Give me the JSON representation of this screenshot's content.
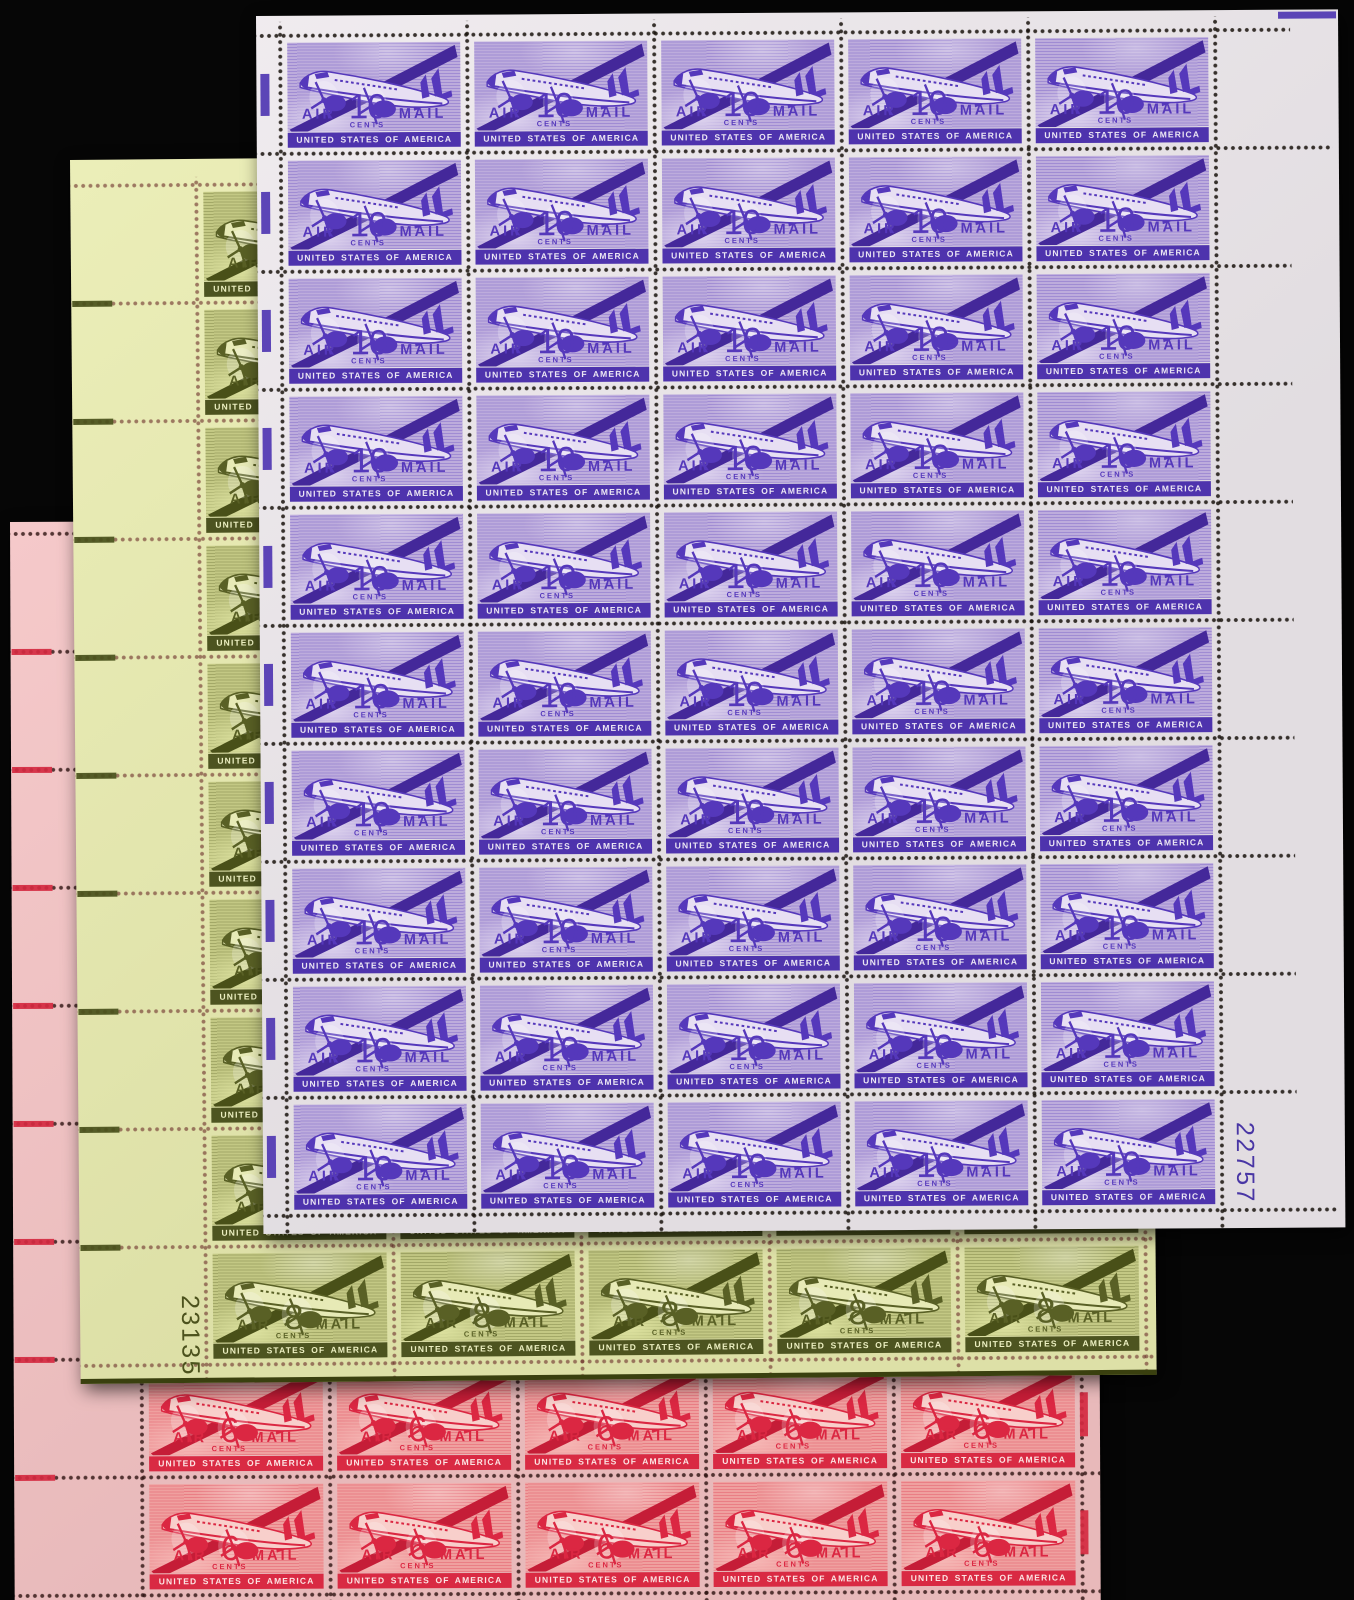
{
  "scene": {
    "description": "Three overlapping full panes of U.S. Transport-plane airmail postage stamps photographed on a black background",
    "background_color": "#060606"
  },
  "labels": {
    "air": "AIR",
    "mail": "MAIL",
    "cents": "CENTS",
    "country": "UNITED STATES OF AMERICA"
  },
  "sheets": [
    {
      "id": "sheet-6c",
      "name": "6-cent carmine airmail pane",
      "denomination": "6",
      "ink_color": "#db2742",
      "paper_color": "#f4c3c4",
      "plate_number": "",
      "plate_color": "",
      "guide_color": "#d42940",
      "cols": 5,
      "rows": 9
    },
    {
      "id": "sheet-8c",
      "name": "8-cent olive airmail pane",
      "denomination": "8",
      "ink_color": "#596025",
      "paper_color": "#e9ecb0",
      "plate_number": "23135",
      "plate_color": "#4c521d",
      "guide_color": "#49501b",
      "cols": 5,
      "rows": 10
    },
    {
      "id": "sheet-10c",
      "name": "10-cent violet airmail pane",
      "denomination": "10",
      "ink_color": "#5538bb",
      "paper_color": "#eee9ed",
      "plate_number": "22757",
      "plate_color": "#4936a5",
      "guide_color": "#4f36b2",
      "cols": 5,
      "rows": 10
    }
  ]
}
